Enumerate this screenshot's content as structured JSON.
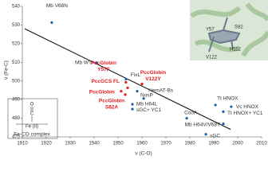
{
  "chart_data": {
    "type": "scatter",
    "x_label": "ν (C-O)",
    "y_label": "ν (Fe-C)",
    "xlim": [
      1910,
      2010
    ],
    "ylim": [
      470,
      540
    ],
    "xticks": [
      1910,
      1920,
      1930,
      1940,
      1950,
      1960,
      1970,
      1980,
      1990,
      2000,
      2010
    ],
    "yticks": [
      470,
      480,
      490,
      500,
      510,
      520,
      530,
      540
    ],
    "color": "#1a5fa6",
    "highlight_color": "#e31a1c",
    "points": [
      {
        "label": [
          "Mb V68N"
        ],
        "x": 1922.3,
        "y": 531.3,
        "highlight": false
      },
      {
        "label": [
          "Mb WT"
        ],
        "x": 1941,
        "y": 509.8,
        "highlight": false
      },
      {
        "label": [
          "FixL"
        ],
        "x": 1953.3,
        "y": 501,
        "highlight": false
      },
      {
        "label": [
          "PccGlobin",
          "Y57F"
        ],
        "x": 1953.3,
        "y": 499.3,
        "highlight": true
      },
      {
        "label": [
          "PccGlobin",
          "V122Y"
        ],
        "x": 1960,
        "y": 498.4,
        "highlight": true
      },
      {
        "label": [
          "PccGCS FL"
        ],
        "x": 1954,
        "y": 496.3,
        "highlight": true
      },
      {
        "label": [
          "PccGlobin"
        ],
        "x": 1951.3,
        "y": 494.5,
        "highlight": true
      },
      {
        "label": [
          "PccGlobin",
          "S82A"
        ],
        "x": 1953,
        "y": 492.7,
        "highlight": true
      },
      {
        "label": [
          "NosP"
        ],
        "x": 1958,
        "y": 494.5,
        "highlight": false
      },
      {
        "label": [
          "HemAT-Bs"
        ],
        "x": 1960.7,
        "y": 490.6,
        "highlight": false
      },
      {
        "label": [
          "Mb H64L"
        ],
        "x": 1956,
        "y": 487.5,
        "highlight": false
      },
      {
        "label": [
          "sGC+ YC1"
        ],
        "x": 1956,
        "y": 484.9,
        "highlight": false
      },
      {
        "label": [
          "CooA"
        ],
        "x": 1978.7,
        "y": 480,
        "highlight": false
      },
      {
        "label": [
          "Tt HNOX"
        ],
        "x": 1990.7,
        "y": 487.1,
        "highlight": false
      },
      {
        "label": [
          "Vc HNOX"
        ],
        "x": 1997.3,
        "y": 486.2,
        "highlight": false
      },
      {
        "label": [
          "Tt HNOX+ YC1"
        ],
        "x": 1994,
        "y": 483.5,
        "highlight": false
      },
      {
        "label": [
          "Mb H64V/V68T"
        ],
        "x": 1994,
        "y": 477,
        "highlight": false
      },
      {
        "label": [
          "sGC"
        ],
        "x": 1986.7,
        "y": 471.4,
        "highlight": false
      }
    ],
    "trend_line": {
      "x": [
        1911,
        1997
      ],
      "y": [
        528,
        474
      ]
    }
  },
  "inset": {
    "labels": [
      "Y57",
      "S82",
      "H112",
      "V122"
    ]
  },
  "schematic": {
    "atoms": [
      "O",
      "C",
      "Fe (II)"
    ],
    "caption": "Fe-CO complex"
  }
}
